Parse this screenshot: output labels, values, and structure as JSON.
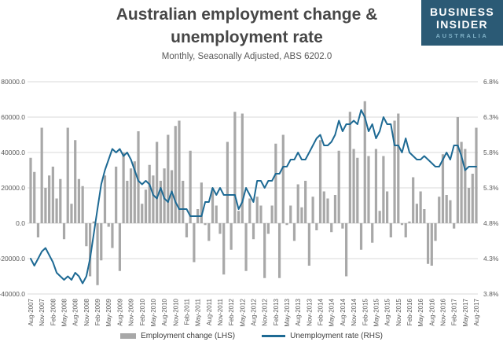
{
  "header": {
    "title_line1": "Australian employment change &",
    "title_line2": "unemployment rate",
    "subtitle": "Monthly, Seasonally Adjusted, ABS 6202.0"
  },
  "logo": {
    "line1": "BUSINESS",
    "line2": "INSIDER",
    "line3": "AUSTRALIA",
    "bg_color": "#2b5a75",
    "accent_color": "#7fb0c6"
  },
  "legend": {
    "items": [
      {
        "label": "Employment change (LHS)",
        "swatch": "bar",
        "color": "#a8a8a8"
      },
      {
        "label": "Unemployment rate (RHS)",
        "swatch": "line",
        "color": "#1e6a94"
      }
    ]
  },
  "colors": {
    "grid": "#d9d9d9",
    "axis_text": "#595959",
    "title_text": "#474747",
    "bar": "#a8a8a8",
    "line": "#1e6a94"
  },
  "chart_data": {
    "type": "combo-bar-line",
    "title": "Australian employment change & unemployment rate",
    "subtitle": "Monthly, Seasonally Adjusted, ABS 6202.0",
    "x": {
      "start": "Aug-2007",
      "end": "Aug-2017",
      "frequency": "monthly",
      "n_points": 121,
      "tick_every": 3,
      "tick_labels": [
        "Aug-2007",
        "Nov-2007",
        "Feb-2008",
        "May-2008",
        "Aug-2008",
        "Nov-2008",
        "Feb-2009",
        "May-2009",
        "Aug-2009",
        "Nov-2009",
        "Feb-2010",
        "May-2010",
        "Aug-2010",
        "Nov-2010",
        "Feb-2011",
        "May-2011",
        "Aug-2011",
        "Nov-2011",
        "Feb-2012",
        "May-2012",
        "Aug-2012",
        "Nov-2012",
        "Feb-2013",
        "May-2013",
        "Aug-2013",
        "Nov-2013",
        "Feb-2014",
        "May-2014",
        "Aug-2014",
        "Nov-2014",
        "Feb-2015",
        "May-2015",
        "Aug-2015",
        "Nov-2015",
        "Feb-2016",
        "May-2016",
        "Aug-2016",
        "Nov-2016",
        "Feb-2017",
        "May-2017",
        "Aug-2017"
      ]
    },
    "left_axis": {
      "min": -40000,
      "max": 80000,
      "step": 20000,
      "tick_labels": [
        "80000.0",
        "60000.0",
        "40000.0",
        "20000.0",
        "0.0",
        "-20000.0",
        "-40000.0"
      ]
    },
    "right_axis": {
      "min": 3.8,
      "max": 6.8,
      "step": 0.5,
      "tick_labels": [
        "6.8%",
        "6.3%",
        "5.8%",
        "5.3%",
        "4.8%",
        "4.3%",
        "3.8%"
      ]
    },
    "grid": true,
    "legend_position": "bottom",
    "series": [
      {
        "name": "Employment change (LHS)",
        "type": "bar",
        "axis": "left",
        "color": "#a8a8a8",
        "values": [
          37000,
          29000,
          -8000,
          54000,
          20000,
          27000,
          32000,
          14000,
          25000,
          -9000,
          54000,
          11000,
          47000,
          25000,
          21000,
          -13000,
          -30000,
          1000,
          -35000,
          -21000,
          27000,
          -2000,
          -14000,
          32000,
          -27000,
          40000,
          24000,
          31000,
          35000,
          52000,
          11000,
          19000,
          33000,
          27000,
          46000,
          24000,
          31000,
          50000,
          30000,
          55000,
          58000,
          24000,
          -8000,
          41000,
          -22000,
          8000,
          23000,
          -1000,
          -10000,
          20000,
          10000,
          -6000,
          -29000,
          46000,
          -15000,
          63000,
          7000,
          62000,
          -27000,
          14000,
          -9000,
          15000,
          10000,
          -31000,
          -6000,
          10000,
          45000,
          -31000,
          50000,
          -1000,
          10000,
          -10000,
          22000,
          9000,
          24000,
          -24000,
          15000,
          -4000,
          47000,
          18000,
          14000,
          -5000,
          16000,
          41000,
          -3000,
          -30000,
          63000,
          42000,
          37000,
          -15000,
          69000,
          38000,
          -11000,
          42000,
          7000,
          38000,
          18000,
          -8000,
          58000,
          62000,
          -1000,
          -8000,
          1000,
          26000,
          11000,
          18000,
          8000,
          -23000,
          -24000,
          -10000,
          15000,
          39000,
          16000,
          13000,
          -3000,
          60000,
          46000,
          42000,
          20000,
          28000,
          54000
        ]
      },
      {
        "name": "Unemployment rate (RHS)",
        "type": "line",
        "axis": "right",
        "color": "#1e6a94",
        "values": [
          4.3,
          4.2,
          4.3,
          4.4,
          4.45,
          4.35,
          4.25,
          4.1,
          4.05,
          4.0,
          4.05,
          4.0,
          4.1,
          4.05,
          3.95,
          4.05,
          4.3,
          4.65,
          5.0,
          5.35,
          5.55,
          5.7,
          5.85,
          5.8,
          5.85,
          5.75,
          5.8,
          5.7,
          5.55,
          5.4,
          5.35,
          5.4,
          5.35,
          5.2,
          5.15,
          5.3,
          5.15,
          5.1,
          5.25,
          5.1,
          5.0,
          5.0,
          5.0,
          4.9,
          4.9,
          4.9,
          4.9,
          5.1,
          5.1,
          5.3,
          5.2,
          5.3,
          5.2,
          5.2,
          5.2,
          5.2,
          5.0,
          5.1,
          5.3,
          5.2,
          5.1,
          5.4,
          5.4,
          5.3,
          5.4,
          5.4,
          5.5,
          5.5,
          5.6,
          5.6,
          5.7,
          5.7,
          5.8,
          5.7,
          5.7,
          5.8,
          5.9,
          6.0,
          6.05,
          5.9,
          5.9,
          5.95,
          6.05,
          6.25,
          6.1,
          6.2,
          6.2,
          6.25,
          6.2,
          6.4,
          6.3,
          6.1,
          6.2,
          6.0,
          6.1,
          6.3,
          6.2,
          6.2,
          5.9,
          5.9,
          5.8,
          6.0,
          5.8,
          5.75,
          5.7,
          5.7,
          5.75,
          5.7,
          5.65,
          5.6,
          5.6,
          5.7,
          5.8,
          5.7,
          5.9,
          5.9,
          5.75,
          5.55,
          5.6,
          5.6,
          5.6
        ]
      }
    ]
  }
}
